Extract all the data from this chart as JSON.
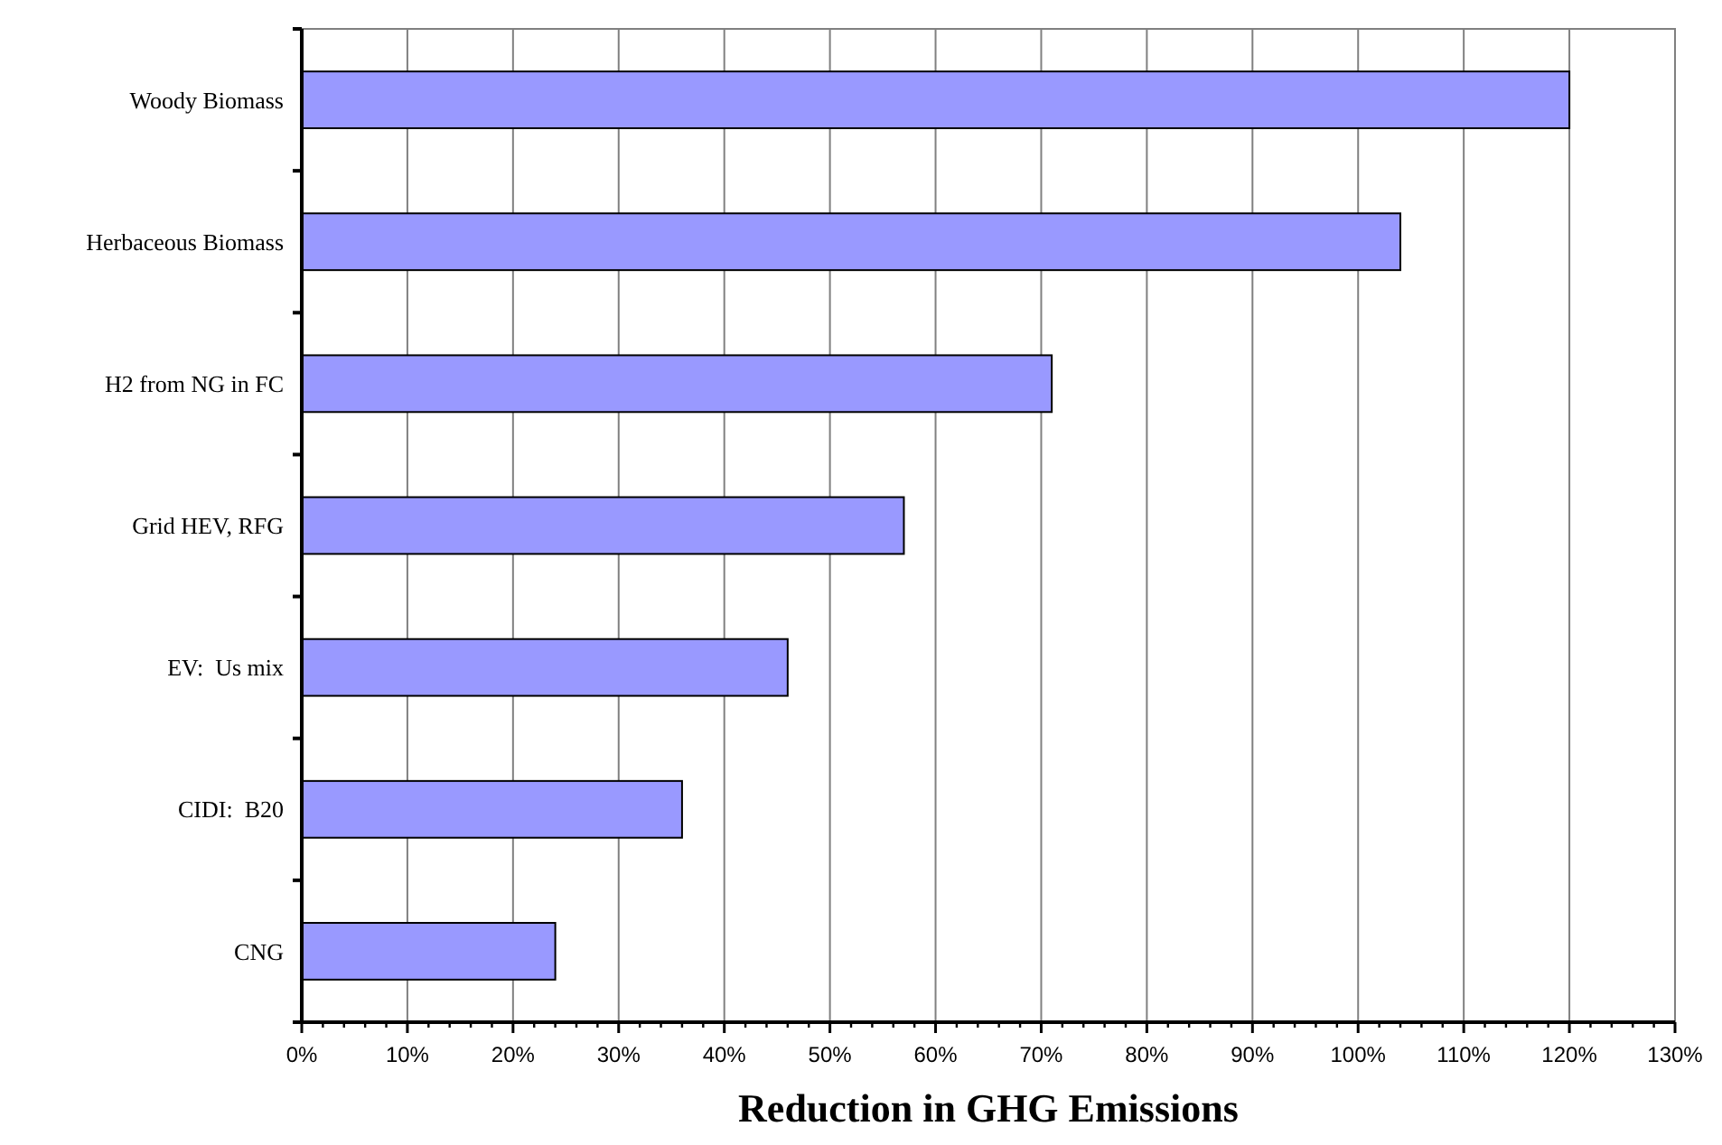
{
  "chart_data": {
    "type": "bar",
    "orientation": "horizontal",
    "xlabel": "Reduction in GHG Emissions",
    "categories": [
      "Woody Biomass",
      "Herbaceous Biomass",
      "H2 from NG in FC",
      "Grid HEV, RFG",
      "EV:  Us mix",
      "CIDI:  B20",
      "CNG"
    ],
    "values": [
      120,
      104,
      71,
      57,
      46,
      36,
      24
    ],
    "color": "#9999ff",
    "xlim": [
      0,
      130
    ],
    "xticks": [
      {
        "value": 0,
        "label": "0%"
      },
      {
        "value": 2,
        "label": null
      },
      {
        "value": 4,
        "label": null
      },
      {
        "value": 6,
        "label": null
      },
      {
        "value": 8,
        "label": null
      },
      {
        "value": 10,
        "label": "10%"
      },
      {
        "value": 12,
        "label": null
      },
      {
        "value": 14,
        "label": null
      },
      {
        "value": 16,
        "label": null
      },
      {
        "value": 18,
        "label": null
      },
      {
        "value": 20,
        "label": "20%"
      },
      {
        "value": 22,
        "label": null
      },
      {
        "value": 24,
        "label": null
      },
      {
        "value": 26,
        "label": null
      },
      {
        "value": 28,
        "label": null
      },
      {
        "value": 30,
        "label": "30%"
      },
      {
        "value": 32,
        "label": null
      },
      {
        "value": 34,
        "label": null
      },
      {
        "value": 36,
        "label": null
      },
      {
        "value": 38,
        "label": null
      },
      {
        "value": 40,
        "label": "40%"
      },
      {
        "value": 42,
        "label": null
      },
      {
        "value": 44,
        "label": null
      },
      {
        "value": 46,
        "label": null
      },
      {
        "value": 48,
        "label": null
      },
      {
        "value": 50,
        "label": "50%"
      },
      {
        "value": 52,
        "label": null
      },
      {
        "value": 54,
        "label": null
      },
      {
        "value": 56,
        "label": null
      },
      {
        "value": 58,
        "label": null
      },
      {
        "value": 60,
        "label": "60%"
      },
      {
        "value": 62,
        "label": null
      },
      {
        "value": 64,
        "label": null
      },
      {
        "value": 66,
        "label": null
      },
      {
        "value": 68,
        "label": null
      },
      {
        "value": 70,
        "label": "70%"
      },
      {
        "value": 72,
        "label": null
      },
      {
        "value": 74,
        "label": null
      },
      {
        "value": 76,
        "label": null
      },
      {
        "value": 78,
        "label": null
      },
      {
        "value": 80,
        "label": "80%"
      },
      {
        "value": 82,
        "label": null
      },
      {
        "value": 84,
        "label": null
      },
      {
        "value": 86,
        "label": null
      },
      {
        "value": 88,
        "label": null
      },
      {
        "value": 90,
        "label": "90%"
      },
      {
        "value": 92,
        "label": null
      },
      {
        "value": 94,
        "label": null
      },
      {
        "value": 96,
        "label": null
      },
      {
        "value": 98,
        "label": null
      },
      {
        "value": 100,
        "label": "100%"
      },
      {
        "value": 102,
        "label": null
      },
      {
        "value": 104,
        "label": null
      },
      {
        "value": 106,
        "label": null
      },
      {
        "value": 108,
        "label": null
      },
      {
        "value": 110,
        "label": "110%"
      },
      {
        "value": 112,
        "label": null
      },
      {
        "value": 114,
        "label": null
      },
      {
        "value": 116,
        "label": null
      },
      {
        "value": 118,
        "label": null
      },
      {
        "value": 120,
        "label": "120%"
      },
      {
        "value": 122,
        "label": null
      },
      {
        "value": 124,
        "label": null
      },
      {
        "value": 126,
        "label": null
      },
      {
        "value": 128,
        "label": null
      },
      {
        "value": 130,
        "label": "130%"
      }
    ],
    "grid": "x"
  }
}
